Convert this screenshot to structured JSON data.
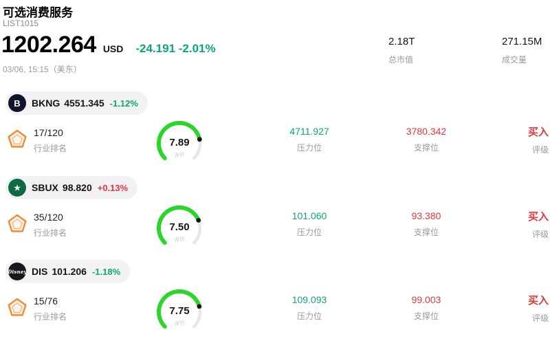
{
  "header": {
    "title": "可选消费服务",
    "list_id": "LIST1015",
    "price": "1202.264",
    "currency": "USD",
    "change": "-24.191 -2.01%",
    "change_direction": "down",
    "timestamp": "03/06, 15:15（美东）",
    "market_cap": {
      "value": "2.18T",
      "label": "总市值"
    },
    "volume": {
      "value": "271.15M",
      "label": "成交量"
    }
  },
  "labels": {
    "industry_rank": "行业排名",
    "score": "评分",
    "resistance": "压力位",
    "support": "支撑位",
    "rating": "评级"
  },
  "gauge": {
    "max": 10,
    "green": "#2bd52b",
    "track": "#e6e6e6"
  },
  "colors": {
    "up_red": "#e5353a",
    "down_teal": "#0aa876"
  },
  "stocks": [
    {
      "symbol": "BKNG",
      "price": "4551.345",
      "change": "-1.12%",
      "change_direction": "down",
      "rank": "17/120",
      "score": "7.89",
      "score_value": 7.89,
      "resistance": "4711.927",
      "support": "3780.342",
      "rating": "买入",
      "logo": {
        "text": "B",
        "bg": "#10142e"
      }
    },
    {
      "symbol": "SBUX",
      "price": "98.820",
      "change": "+0.13%",
      "change_direction": "up",
      "rank": "35/120",
      "score": "7.50",
      "score_value": 7.5,
      "resistance": "101.060",
      "support": "93.380",
      "rating": "买入",
      "logo": {
        "text": "★",
        "bg": "#0c6b40"
      }
    },
    {
      "symbol": "DIS",
      "price": "101.206",
      "change": "-1.18%",
      "change_direction": "down",
      "rank": "15/76",
      "score": "7.75",
      "score_value": 7.75,
      "resistance": "109.093",
      "support": "99.003",
      "rating": "买入",
      "logo": {
        "text": "Disney",
        "bg": "#17171c"
      }
    }
  ]
}
